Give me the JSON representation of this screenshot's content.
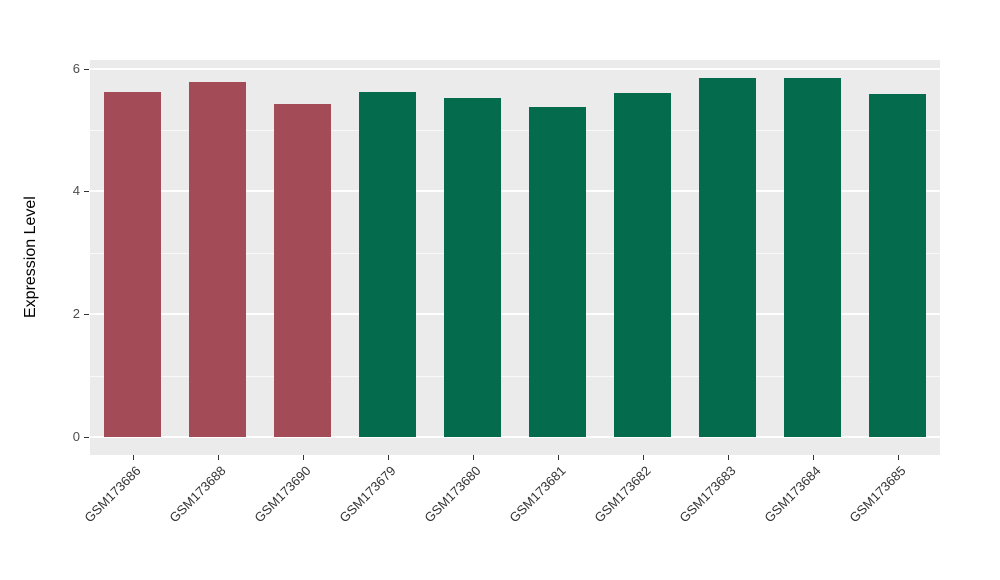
{
  "chart_data": {
    "type": "bar",
    "title": "",
    "xlabel": "",
    "ylabel": "Expression Level",
    "categories": [
      "GSM173686",
      "GSM173688",
      "GSM173690",
      "GSM173679",
      "GSM173680",
      "GSM173681",
      "GSM173682",
      "GSM173683",
      "GSM173684",
      "GSM173685"
    ],
    "values": [
      5.62,
      5.78,
      5.42,
      5.62,
      5.52,
      5.37,
      5.6,
      5.85,
      5.85,
      5.58
    ],
    "colors": [
      "#A34B57",
      "#A34B57",
      "#A34B57",
      "#046C4C",
      "#046C4C",
      "#046C4C",
      "#046C4C",
      "#046C4C",
      "#046C4C",
      "#046C4C"
    ],
    "group_colors": {
      "group1": "#A34B57",
      "group2": "#046C4C"
    },
    "ylim": [
      -0.29,
      6.14
    ],
    "yticks": [
      0,
      2,
      4,
      6
    ],
    "yminor": [
      1,
      3,
      5
    ],
    "bar_width_frac": 0.66,
    "panel_bg": "#EBEBEB",
    "grid_color": "#FFFFFF",
    "grid": true,
    "legend_position": "none",
    "x_label_angle": 45
  }
}
